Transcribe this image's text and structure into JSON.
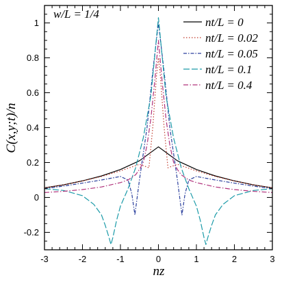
{
  "chart_data": {
    "type": "line",
    "annotation": "w/L = 1/4",
    "xlabel": "nz",
    "ylabel": "C(x,y;t)/n",
    "xlim": [
      -3,
      3
    ],
    "ylim": [
      -0.3,
      1.1
    ],
    "xticks": [
      -3,
      -2,
      -1,
      0,
      1,
      2,
      3
    ],
    "yticks": [
      -0.2,
      0,
      0.2,
      0.4,
      0.6,
      0.8,
      1
    ],
    "grid": false,
    "legend_position": "top-right",
    "series": [
      {
        "name": "nt/L = 0",
        "color": "#000000",
        "dash": "solid",
        "x": [
          -3,
          -2.5,
          -2,
          -1.5,
          -1,
          -0.5,
          0,
          0.5,
          1,
          1.5,
          2,
          2.5,
          3
        ],
        "y": [
          0.055,
          0.072,
          0.095,
          0.123,
          0.16,
          0.21,
          0.29,
          0.21,
          0.16,
          0.123,
          0.095,
          0.072,
          0.055
        ]
      },
      {
        "name": "nt/L = 0.02",
        "color": "#c0392b",
        "dash": "dotted",
        "x": [
          -3,
          -2.5,
          -2,
          -1.5,
          -1,
          -0.5,
          -0.25,
          -0.15,
          -0.05,
          0,
          0.05,
          0.15,
          0.25,
          0.5,
          1,
          1.5,
          2,
          2.5,
          3
        ],
        "y": [
          0.055,
          0.072,
          0.094,
          0.12,
          0.152,
          0.19,
          0.17,
          0.4,
          0.7,
          0.8,
          0.7,
          0.4,
          0.17,
          0.19,
          0.152,
          0.12,
          0.094,
          0.072,
          0.055
        ]
      },
      {
        "name": "nt/L = 0.05",
        "color": "#2a3f9d",
        "dash": "dash-dot",
        "x": [
          -3,
          -2.5,
          -2,
          -1.5,
          -1,
          -0.8,
          -0.7,
          -0.62,
          -0.5,
          -0.3,
          -0.15,
          0,
          0.15,
          0.3,
          0.5,
          0.62,
          0.7,
          0.8,
          1,
          1.5,
          2,
          2.5,
          3
        ],
        "y": [
          0.05,
          0.065,
          0.082,
          0.1,
          0.12,
          0.1,
          0.02,
          -0.1,
          0.1,
          0.4,
          0.72,
          1.0,
          0.72,
          0.4,
          0.1,
          -0.1,
          0.02,
          0.1,
          0.12,
          0.1,
          0.082,
          0.065,
          0.05
        ]
      },
      {
        "name": "nt/L = 0.1",
        "color": "#1a9aa8",
        "dash": "long-dash",
        "x": [
          -3,
          -2.5,
          -2,
          -1.7,
          -1.5,
          -1.4,
          -1.3,
          -1.25,
          -1.2,
          -1.1,
          -1,
          -0.8,
          -0.6,
          -0.4,
          -0.2,
          0,
          0.2,
          0.4,
          0.6,
          0.8,
          1,
          1.1,
          1.2,
          1.25,
          1.3,
          1.4,
          1.5,
          1.7,
          2,
          2.5,
          3
        ],
        "y": [
          0.05,
          0.04,
          0.01,
          -0.04,
          -0.1,
          -0.16,
          -0.23,
          -0.27,
          -0.23,
          -0.13,
          -0.05,
          0.05,
          0.17,
          0.34,
          0.58,
          1.03,
          0.58,
          0.34,
          0.17,
          0.05,
          -0.05,
          -0.13,
          -0.23,
          -0.27,
          -0.23,
          -0.16,
          -0.1,
          -0.04,
          0.01,
          0.04,
          0.05
        ]
      },
      {
        "name": "nt/L = 0.4",
        "color": "#b0307a",
        "dash": "dash-dot-long",
        "x": [
          -3,
          -2.5,
          -2,
          -1.5,
          -1,
          -0.8,
          -0.6,
          -0.5,
          -0.4,
          -0.3,
          -0.2,
          -0.1,
          0,
          0.1,
          0.2,
          0.3,
          0.4,
          0.5,
          0.6,
          0.8,
          1,
          1.5,
          2,
          2.5,
          3
        ],
        "y": [
          0.028,
          0.035,
          0.045,
          0.06,
          0.085,
          0.1,
          0.13,
          0.16,
          0.2,
          0.3,
          0.45,
          0.66,
          0.9,
          0.66,
          0.45,
          0.3,
          0.2,
          0.16,
          0.13,
          0.1,
          0.085,
          0.06,
          0.045,
          0.035,
          0.028
        ]
      }
    ]
  }
}
